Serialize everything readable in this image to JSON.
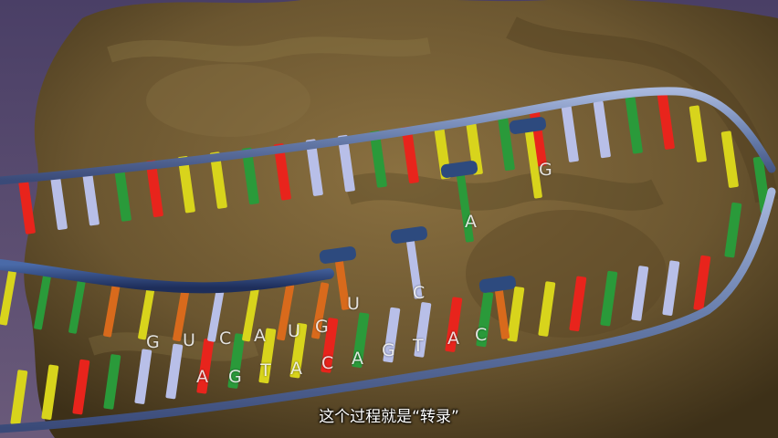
{
  "caption": "这个过程就是“转录”",
  "rna_sequence_letters": [
    "G",
    "U",
    "C",
    "A",
    "U",
    "G",
    "U",
    "C"
  ],
  "dna_template_letters": [
    "A",
    "G",
    "T",
    "A",
    "C",
    "A",
    "G",
    "T",
    "A",
    "C"
  ],
  "free_nucleotide_letters": [
    "A",
    "G"
  ],
  "colors": {
    "background": "#5a4a6e",
    "protein": "#6b5630",
    "backbone": "#7a8fb8",
    "rna_strand": "#2d4a7e",
    "base_red": "#e8241c",
    "base_green": "#2a9a3a",
    "base_yellow": "#d8d41c",
    "base_lavender": "#b8bfe8",
    "base_orange": "#d86a1c"
  }
}
